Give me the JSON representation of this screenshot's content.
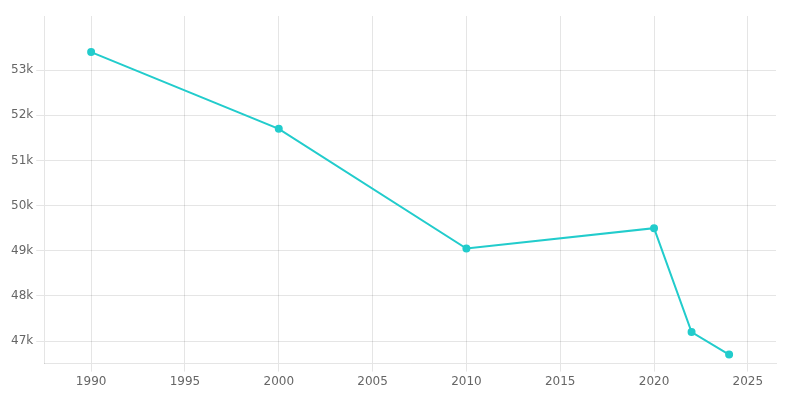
{
  "chart_data": {
    "type": "line",
    "x": [
      1990,
      2000,
      2010,
      2020,
      2022,
      2024
    ],
    "values": [
      53400,
      51700,
      49050,
      49500,
      47200,
      46700
    ],
    "color": "#22CCCC",
    "marker": "circle",
    "xlim": [
      1987.5,
      2026.5
    ],
    "xticks": [
      1990,
      1995,
      2000,
      2005,
      2010,
      2015,
      2020,
      2025
    ],
    "ylim": [
      46500,
      54200
    ],
    "yticks": [
      {
        "value": 47000,
        "label": "47k"
      },
      {
        "value": 48000,
        "label": "48k"
      },
      {
        "value": 49000,
        "label": "49k"
      },
      {
        "value": 50000,
        "label": "50k"
      },
      {
        "value": 51000,
        "label": "51k"
      },
      {
        "value": 52000,
        "label": "52k"
      },
      {
        "value": 53000,
        "label": "53k"
      }
    ],
    "grid": true
  }
}
